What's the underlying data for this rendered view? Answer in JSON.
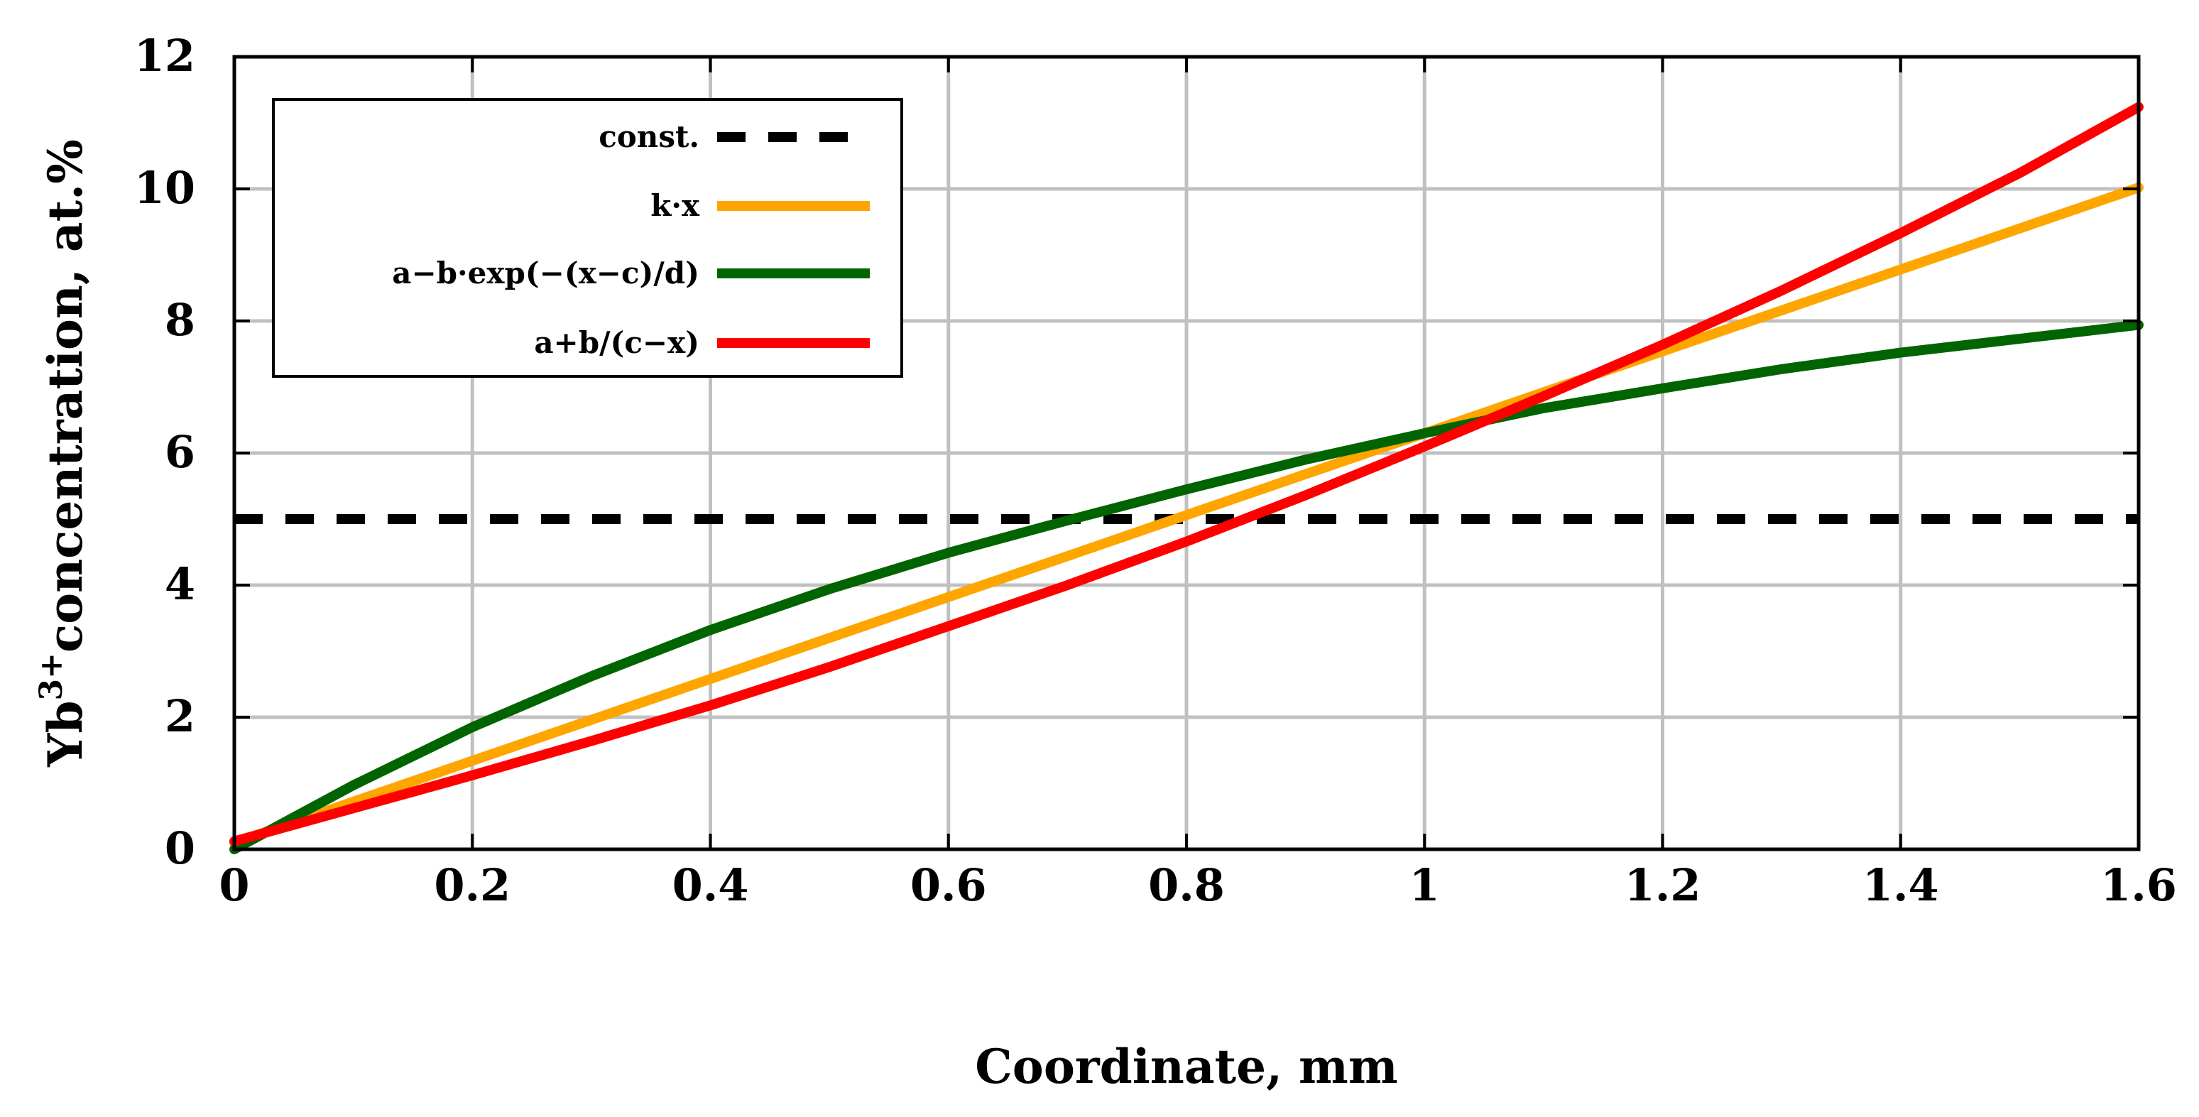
{
  "chart_data": {
    "type": "line",
    "title": "",
    "xlabel": "Coordinate, mm",
    "ylabel": {
      "prefix": "Yb",
      "superscript": "3+",
      "suffix": "concentration, at.%"
    },
    "xlim": [
      0,
      1.6
    ],
    "ylim": [
      0,
      12
    ],
    "x_ticks": [
      0,
      0.2,
      0.4,
      0.6,
      0.8,
      1,
      1.2,
      1.4,
      1.6
    ],
    "x_tick_labels": [
      "0",
      "0.2",
      "0.4",
      "0.6",
      "0.8",
      "1",
      "1.2",
      "1.4",
      "1.6"
    ],
    "y_ticks": [
      0,
      2,
      4,
      6,
      8,
      10,
      12
    ],
    "y_tick_labels": [
      "0",
      "2",
      "4",
      "6",
      "8",
      "10",
      "12"
    ],
    "grid": true,
    "legend_position": "top-left",
    "x": [
      0,
      0.1,
      0.2,
      0.3,
      0.4,
      0.5,
      0.6,
      0.7,
      0.8,
      0.9,
      1.0,
      1.1,
      1.2,
      1.3,
      1.4,
      1.5,
      1.6
    ],
    "series": [
      {
        "name": "const.",
        "color": "#000000",
        "dashed": true,
        "values": [
          5,
          5,
          5,
          5,
          5,
          5,
          5,
          5,
          5,
          5,
          5,
          5,
          5,
          5,
          5,
          5,
          5
        ]
      },
      {
        "name": "k·x",
        "color": "#ffa500",
        "dashed": false,
        "values": [
          0.1,
          0.72,
          1.34,
          1.96,
          2.58,
          3.2,
          3.82,
          4.44,
          5.06,
          5.68,
          6.3,
          6.92,
          7.54,
          8.16,
          8.78,
          9.4,
          10.02
        ]
      },
      {
        "name": "a−b·exp(−(x−c)/d)",
        "color": "#006400",
        "dashed": false,
        "values": [
          0.0,
          0.97,
          1.85,
          2.62,
          3.32,
          3.94,
          4.49,
          4.98,
          5.45,
          5.9,
          6.3,
          6.68,
          6.98,
          7.27,
          7.52,
          7.73,
          7.94
        ]
      },
      {
        "name": "a+b/(c−x)",
        "color": "#ff0000",
        "dashed": false,
        "values": [
          0.12,
          0.62,
          1.12,
          1.64,
          2.18,
          2.76,
          3.38,
          4.0,
          4.66,
          5.36,
          6.1,
          6.86,
          7.64,
          8.46,
          9.33,
          10.24,
          11.24
        ]
      }
    ]
  }
}
